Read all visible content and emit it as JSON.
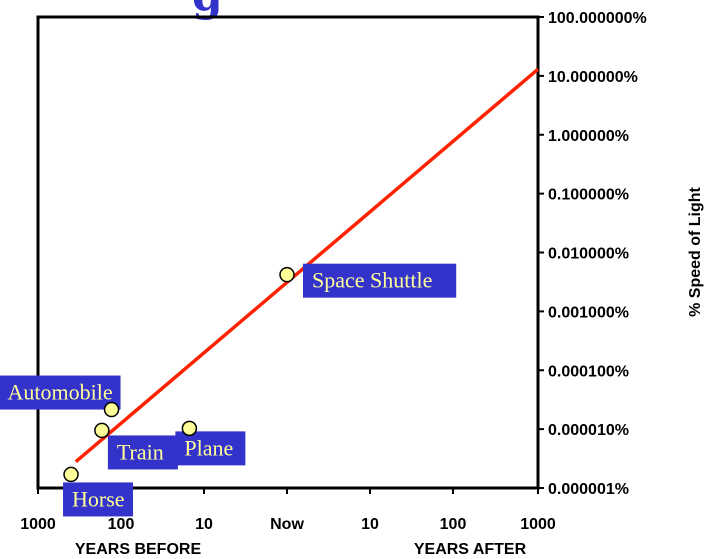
{
  "title_fragment": "g",
  "chart_data": {
    "type": "scatter",
    "x_ticks": [
      "1000",
      "100",
      "10",
      "Now",
      "10",
      "100",
      "1000"
    ],
    "x_group_labels": [
      "YEARS BEFORE",
      "YEARS AFTER"
    ],
    "y_scale": "log",
    "y_ticks": [
      "100.000000%",
      "10.000000%",
      "1.000000%",
      "0.100000%",
      "0.010000%",
      "0.001000%",
      "0.000100%",
      "0.000010%",
      "0.000001%"
    ],
    "ylabel": "% Speed of Light",
    "ylim": [
      1e-06,
      100
    ],
    "xlim": [
      -1000,
      1000
    ],
    "grid": false,
    "points": [
      {
        "label": "Horse",
        "x": -400,
        "y": 1.7e-06
      },
      {
        "label": "Train",
        "x": -170,
        "y": 9.5e-06
      },
      {
        "label": "Automobile",
        "x": -130,
        "y": 2.15e-05
      },
      {
        "label": "Plane",
        "x": -15,
        "y": 1.03e-05
      },
      {
        "label": "Space Shuttle",
        "x": 0,
        "y": 0.0042
      }
    ],
    "trend_line": {
      "x": [
        -350,
        1000
      ],
      "y": [
        2.8e-06,
        13
      ]
    },
    "colors": {
      "line": "#ff2200",
      "marker_fill": "#ffff99",
      "label_bg": "#3333cc",
      "label_text": "#ffff99",
      "title": "#3333cc"
    }
  }
}
